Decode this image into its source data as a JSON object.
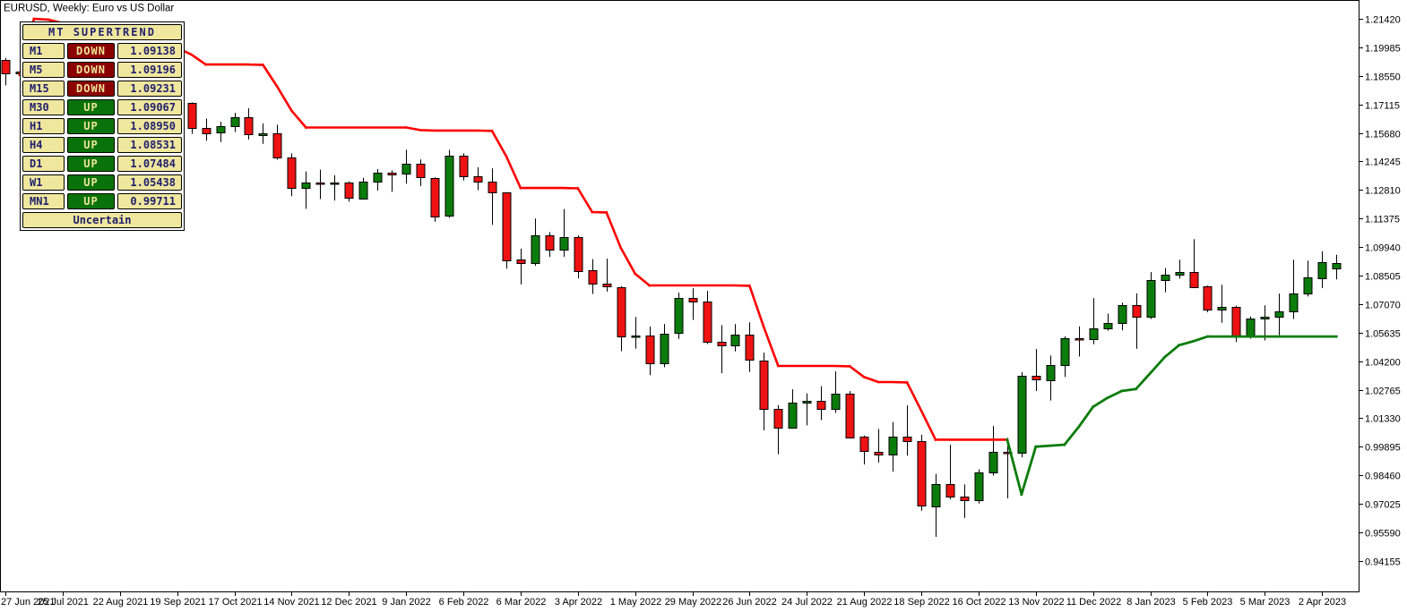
{
  "window": {
    "title": "EURUSD, Weekly: Euro vs US Dollar"
  },
  "panel": {
    "title": "MT SUPERTREND",
    "footer": "Uncertain",
    "rows": [
      {
        "timeframe": "M1",
        "status": "DOWN",
        "value": "1.09138"
      },
      {
        "timeframe": "M5",
        "status": "DOWN",
        "value": "1.09196"
      },
      {
        "timeframe": "M15",
        "status": "DOWN",
        "value": "1.09231"
      },
      {
        "timeframe": "M30",
        "status": "UP",
        "value": "1.09067"
      },
      {
        "timeframe": "H1",
        "status": "UP",
        "value": "1.08950"
      },
      {
        "timeframe": "H4",
        "status": "UP",
        "value": "1.08531"
      },
      {
        "timeframe": "D1",
        "status": "UP",
        "value": "1.07484"
      },
      {
        "timeframe": "W1",
        "status": "UP",
        "value": "1.05438"
      },
      {
        "timeframe": "MN1",
        "status": "UP",
        "value": "0.99711"
      }
    ],
    "colors": {
      "cell_bg": "#EFE79E",
      "text": "#20206E",
      "down_bg": "#8B0000",
      "up_bg": "#0A720A",
      "status_text": "#EDE598"
    }
  },
  "axes": {
    "y_labels": [
      "1.21420",
      "1.19985",
      "1.18550",
      "1.17115",
      "1.15680",
      "1.14245",
      "1.12810",
      "1.11375",
      "1.09940",
      "1.08505",
      "1.07070",
      "1.05635",
      "1.04200",
      "1.02765",
      "1.01330",
      "0.99895",
      "0.98460",
      "0.97025",
      "0.95590",
      "0.94155"
    ],
    "y_tick_step": 0.01435,
    "x_labels": [
      {
        "label": "27 Jun 2021",
        "week": 0
      },
      {
        "label": "25 Jul 2021",
        "week": 4
      },
      {
        "label": "22 Aug 2021",
        "week": 8
      },
      {
        "label": "19 Sep 2021",
        "week": 12
      },
      {
        "label": "17 Oct 2021",
        "week": 16
      },
      {
        "label": "14 Nov 2021",
        "week": 20
      },
      {
        "label": "12 Dec 2021",
        "week": 24
      },
      {
        "label": "9 Jan 2022",
        "week": 28
      },
      {
        "label": "6 Feb 2022",
        "week": 32
      },
      {
        "label": "6 Mar 2022",
        "week": 36
      },
      {
        "label": "3 Apr 2022",
        "week": 40
      },
      {
        "label": "1 May 2022",
        "week": 44
      },
      {
        "label": "29 May 2022",
        "week": 48
      },
      {
        "label": "26 Jun 2022",
        "week": 52
      },
      {
        "label": "24 Jul 2022",
        "week": 56
      },
      {
        "label": "21 Aug 2022",
        "week": 60
      },
      {
        "label": "18 Sep 2022",
        "week": 64
      },
      {
        "label": "16 Oct 2022",
        "week": 68
      },
      {
        "label": "13 Nov 2022",
        "week": 72
      },
      {
        "label": "11 Dec 2022",
        "week": 76
      },
      {
        "label": "8 Jan 2023",
        "week": 80
      },
      {
        "label": "5 Feb 2023",
        "week": 84
      },
      {
        "label": "5 Mar 2023",
        "week": 88
      },
      {
        "label": "2 Apr 2023",
        "week": 92
      }
    ]
  },
  "chart_data": {
    "type": "candlestick",
    "title": "EURUSD, Weekly: Euro vs US Dollar",
    "symbol": "EURUSD",
    "timeframe": "Weekly",
    "start_date": "2021-06-27",
    "interval_days": 7,
    "ylim": [
      0.9245,
      1.2237
    ],
    "grid": false,
    "legend": false,
    "colors": {
      "bull": "#0B7C0B",
      "bear": "#EF1212",
      "wick": "#000000",
      "supertrend_down": "#FF0000",
      "supertrend_up": "#0B7C0B",
      "axis": "#000000",
      "background": "#FFFFFF"
    },
    "candles_ohlc": [
      [
        1.1933,
        1.1945,
        1.1807,
        1.1864
      ],
      [
        1.1864,
        1.1895,
        1.1781,
        1.1875
      ],
      [
        1.1875,
        1.1881,
        1.1772,
        1.1806
      ],
      [
        1.1806,
        1.1823,
        1.1752,
        1.177
      ],
      [
        1.177,
        1.1909,
        1.1756,
        1.187
      ],
      [
        1.187,
        1.1899,
        1.1742,
        1.1762
      ],
      [
        1.1762,
        1.1805,
        1.1704,
        1.1795
      ],
      [
        1.1795,
        1.1804,
        1.1664,
        1.1698
      ],
      [
        1.1698,
        1.1775,
        1.1693,
        1.1796
      ],
      [
        1.1796,
        1.1909,
        1.1796,
        1.188
      ],
      [
        1.188,
        1.1885,
        1.177,
        1.1813
      ],
      [
        1.1813,
        1.1851,
        1.1724,
        1.1725
      ],
      [
        1.1725,
        1.1756,
        1.1684,
        1.172
      ],
      [
        1.172,
        1.1722,
        1.1563,
        1.1595
      ],
      [
        1.1595,
        1.164,
        1.1529,
        1.1567
      ],
      [
        1.1567,
        1.1624,
        1.1522,
        1.16
      ],
      [
        1.16,
        1.1669,
        1.1572,
        1.1645
      ],
      [
        1.1645,
        1.1692,
        1.1535,
        1.156
      ],
      [
        1.156,
        1.1616,
        1.1513,
        1.1567
      ],
      [
        1.1567,
        1.1609,
        1.1433,
        1.1445
      ],
      [
        1.1445,
        1.1465,
        1.125,
        1.129
      ],
      [
        1.129,
        1.1374,
        1.1186,
        1.1317
      ],
      [
        1.1317,
        1.1383,
        1.1235,
        1.1313
      ],
      [
        1.1313,
        1.1355,
        1.1228,
        1.1317
      ],
      [
        1.1317,
        1.1324,
        1.1222,
        1.124
      ],
      [
        1.124,
        1.1342,
        1.1234,
        1.1325
      ],
      [
        1.1325,
        1.1386,
        1.1278,
        1.137
      ],
      [
        1.137,
        1.138,
        1.1272,
        1.136
      ],
      [
        1.136,
        1.1483,
        1.1313,
        1.1411
      ],
      [
        1.1411,
        1.1435,
        1.1301,
        1.1343
      ],
      [
        1.1343,
        1.1345,
        1.1121,
        1.1151
      ],
      [
        1.1151,
        1.1483,
        1.1141,
        1.1452
      ],
      [
        1.1452,
        1.1465,
        1.1329,
        1.135
      ],
      [
        1.135,
        1.1395,
        1.128,
        1.1323
      ],
      [
        1.1323,
        1.139,
        1.1106,
        1.127
      ],
      [
        1.127,
        1.127,
        1.0885,
        1.093
      ],
      [
        1.093,
        1.0986,
        1.0806,
        1.091
      ],
      [
        1.091,
        1.1137,
        1.09,
        1.1051
      ],
      [
        1.1051,
        1.1069,
        1.0944,
        1.0981
      ],
      [
        1.0981,
        1.1185,
        1.0945,
        1.1046
      ],
      [
        1.1046,
        1.1052,
        1.0836,
        1.0876
      ],
      [
        1.0876,
        1.0933,
        1.0758,
        1.0808
      ],
      [
        1.0808,
        1.0936,
        1.077,
        1.0794
      ],
      [
        1.0794,
        1.0797,
        1.047,
        1.0545
      ],
      [
        1.0545,
        1.0642,
        1.0483,
        1.0551
      ],
      [
        1.0551,
        1.0594,
        1.0349,
        1.0412
      ],
      [
        1.0412,
        1.0607,
        1.0389,
        1.056
      ],
      [
        1.056,
        1.0765,
        1.0532,
        1.0737
      ],
      [
        1.0737,
        1.0787,
        1.0627,
        1.0719
      ],
      [
        1.0719,
        1.0774,
        1.0506,
        1.0518
      ],
      [
        1.0518,
        1.0601,
        1.0359,
        1.0498
      ],
      [
        1.0498,
        1.0606,
        1.0469,
        1.0553
      ],
      [
        1.0553,
        1.0615,
        1.0366,
        1.0425
      ],
      [
        1.0425,
        1.0463,
        1.0072,
        1.0182
      ],
      [
        1.0182,
        1.0199,
        0.9952,
        1.0089
      ],
      [
        1.0089,
        1.0278,
        1.008,
        1.0213
      ],
      [
        1.0213,
        1.0258,
        1.0097,
        1.0222
      ],
      [
        1.0222,
        1.0294,
        1.0123,
        1.0181
      ],
      [
        1.0181,
        1.0369,
        1.016,
        1.0258
      ],
      [
        1.0258,
        1.0269,
        1.0032,
        1.0039
      ],
      [
        1.0039,
        1.0046,
        0.99,
        0.9965
      ],
      [
        0.9965,
        1.0079,
        0.991,
        0.9952
      ],
      [
        0.9952,
        1.0114,
        0.9864,
        1.004
      ],
      [
        1.004,
        1.0198,
        0.9945,
        1.0016
      ],
      [
        1.0016,
        1.005,
        0.9668,
        0.969
      ],
      [
        0.969,
        0.9853,
        0.9536,
        0.9802
      ],
      [
        0.9802,
        0.9999,
        0.9726,
        0.9737
      ],
      [
        0.9737,
        0.98,
        0.9632,
        0.972
      ],
      [
        0.972,
        0.9876,
        0.9704,
        0.986
      ],
      [
        0.986,
        1.0094,
        0.9844,
        0.9963
      ],
      [
        0.9963,
        1.0034,
        0.973,
        0.9958
      ],
      [
        0.9958,
        1.0365,
        0.9936,
        1.0345
      ],
      [
        1.0345,
        1.0481,
        1.027,
        1.0325
      ],
      [
        1.0325,
        1.0448,
        1.0222,
        1.0402
      ],
      [
        1.0402,
        1.0545,
        1.034,
        1.0535
      ],
      [
        1.0535,
        1.0595,
        1.0443,
        1.053
      ],
      [
        1.053,
        1.0737,
        1.0505,
        1.0585
      ],
      [
        1.0585,
        1.0659,
        1.0573,
        1.0614
      ],
      [
        1.0614,
        1.0715,
        1.0575,
        1.0702
      ],
      [
        1.0702,
        1.0761,
        1.0482,
        1.0645
      ],
      [
        1.0645,
        1.0868,
        1.0632,
        1.083
      ],
      [
        1.083,
        1.0888,
        1.0766,
        1.0855
      ],
      [
        1.0855,
        1.093,
        1.0835,
        1.087
      ],
      [
        1.087,
        1.1033,
        1.079,
        1.0795
      ],
      [
        1.0795,
        1.08,
        1.0666,
        1.068
      ],
      [
        1.068,
        1.0804,
        1.0613,
        1.0695
      ],
      [
        1.0695,
        1.0699,
        1.0516,
        1.0546
      ],
      [
        1.0546,
        1.0645,
        1.0533,
        1.0635
      ],
      [
        1.0635,
        1.0701,
        1.0524,
        1.0643
      ],
      [
        1.0643,
        1.076,
        1.055,
        1.0672
      ],
      [
        1.0672,
        1.093,
        1.0632,
        1.076
      ],
      [
        1.076,
        1.0926,
        1.0745,
        1.084
      ],
      [
        1.084,
        1.0973,
        1.0788,
        1.092
      ],
      [
        1.0886,
        1.0955,
        1.0831,
        1.0914
      ]
    ],
    "supertrend": {
      "up_from_week": 71,
      "values": [
        null,
        1.186,
        1.2142,
        1.2138,
        1.212,
        1.2098,
        1.2072,
        1.2048,
        1.2028,
        1.2012,
        1.2002,
        1.1998,
        1.1996,
        1.1962,
        1.1912,
        1.1912,
        1.1912,
        1.1912,
        1.191,
        1.18,
        1.168,
        1.1595,
        1.1595,
        1.1595,
        1.1595,
        1.1595,
        1.1595,
        1.1595,
        1.1595,
        1.1582,
        1.158,
        1.158,
        1.158,
        1.158,
        1.1578,
        1.145,
        1.1291,
        1.1291,
        1.1291,
        1.1291,
        1.1289,
        1.117,
        1.1168,
        1.099,
        1.086,
        1.0801,
        1.0801,
        1.0801,
        1.0801,
        1.0801,
        1.0801,
        1.0801,
        1.0799,
        1.059,
        1.0396,
        1.0396,
        1.0396,
        1.0396,
        1.0396,
        1.0394,
        1.034,
        1.0315,
        1.0315,
        1.0313,
        1.017,
        1.0025,
        1.0025,
        1.0025,
        1.0025,
        1.0025,
        1.0025,
        0.975,
        0.999,
        0.9995,
        1.0,
        1.009,
        1.019,
        1.0235,
        1.027,
        1.028,
        1.036,
        1.044,
        1.05,
        1.052,
        1.0544,
        1.0544,
        1.0544,
        1.0544,
        1.0544,
        1.0544,
        1.0544,
        1.0544,
        1.0544,
        1.0544
      ]
    }
  }
}
